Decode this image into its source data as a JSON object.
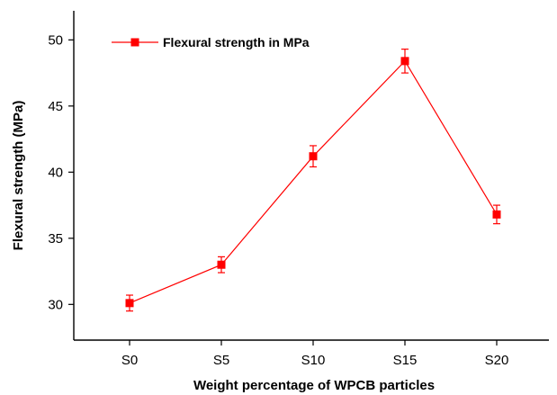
{
  "colors": {
    "series": "#ff0000",
    "axis": "#000000",
    "background": "#ffffff"
  },
  "chart_data": {
    "type": "line",
    "title": "",
    "xlabel": "Weight percentage of WPCB particles",
    "ylabel": "Flexural strength (MPa)",
    "categories": [
      "S0",
      "S5",
      "S10",
      "S15",
      "S20"
    ],
    "ylim": [
      27.3,
      52.2
    ],
    "yticks": [
      30,
      35,
      40,
      45,
      50
    ],
    "grid": false,
    "legend_position": "top-left",
    "series": [
      {
        "name": "Flexural strength in MPa",
        "marker": "square",
        "values": [
          30.1,
          33.0,
          41.2,
          48.4,
          36.8
        ],
        "error": [
          0.6,
          0.6,
          0.8,
          0.9,
          0.7
        ]
      }
    ]
  }
}
